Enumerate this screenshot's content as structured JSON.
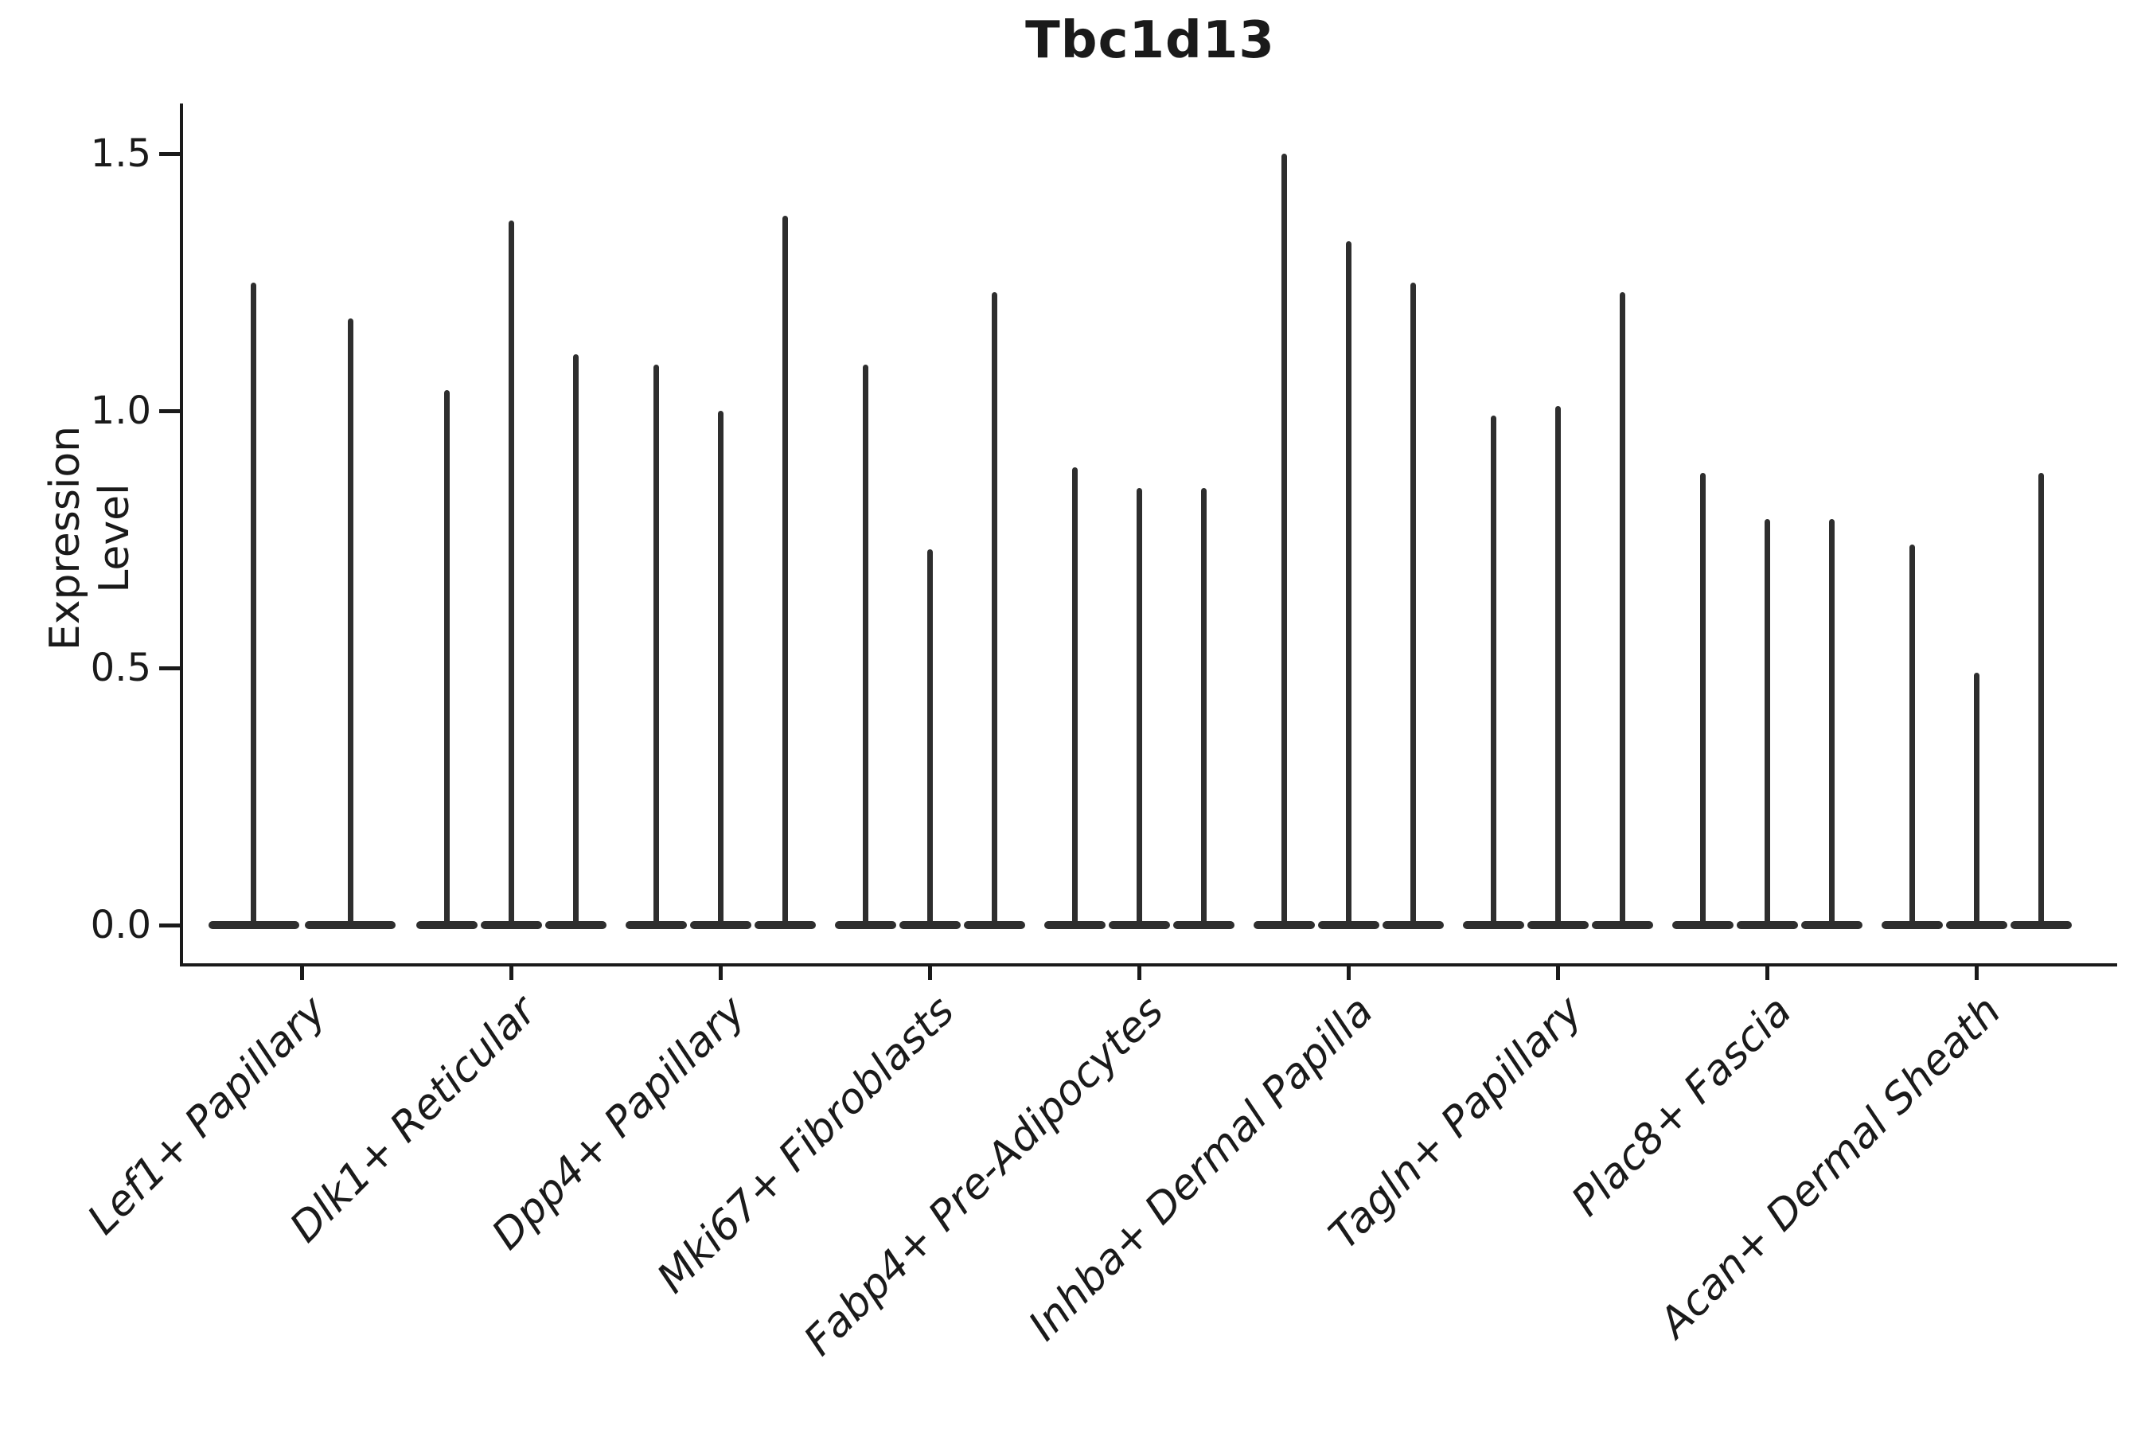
{
  "title": "Tbc1d13",
  "y_axis": {
    "label": "Expression Level",
    "tick_labels": [
      "0.0",
      "0.5",
      "1.0",
      "1.5"
    ]
  },
  "colors": {
    "violin": "#2e2e2e",
    "axis": "#1a1a1a",
    "text": "#1a1a1a",
    "background": "#ffffff"
  },
  "chart_data": {
    "type": "violin",
    "title": "Tbc1d13",
    "xlabel": "",
    "ylabel": "Expression Level",
    "ylim": [
      -0.07,
      1.57
    ],
    "yticks": [
      0.0,
      0.5,
      1.0,
      1.5
    ],
    "ytick_labels": [
      "0.0",
      "0.5",
      "1.0",
      "1.5"
    ],
    "grid": false,
    "legend": "none",
    "baseline_value": 0.0,
    "categories": [
      "Lef1+ Papillary",
      "Dlk1+ Reticular",
      "Dpp4+ Papillary",
      "Mki67+ Fibroblasts",
      "Fabp4+ Pre-Adipocytes",
      "Inhba+ Dermal Papilla",
      "Tagln+ Papillary",
      "Plac8+ Fascia",
      "Acan+ Dermal Sheath"
    ],
    "groups": [
      {
        "category": "Lef1+ Papillary",
        "violin_max": [
          1.25,
          1.18
        ]
      },
      {
        "category": "Dlk1+ Reticular",
        "violin_max": [
          1.04,
          1.37,
          1.11
        ]
      },
      {
        "category": "Dpp4+ Papillary",
        "violin_max": [
          1.09,
          1.0,
          1.38
        ]
      },
      {
        "category": "Mki67+ Fibroblasts",
        "violin_max": [
          1.09,
          0.73,
          1.23
        ]
      },
      {
        "category": "Fabp4+ Pre-Adipocytes",
        "violin_max": [
          0.89,
          0.85,
          0.85
        ]
      },
      {
        "category": "Inhba+ Dermal Papilla",
        "violin_max": [
          1.5,
          1.33,
          1.25
        ]
      },
      {
        "category": "Tagln+ Papillary",
        "violin_max": [
          0.99,
          1.01,
          1.23
        ]
      },
      {
        "category": "Plac8+ Fascia",
        "violin_max": [
          0.88,
          0.79,
          0.79
        ]
      },
      {
        "category": "Acan+ Dermal Sheath",
        "violin_max": [
          0.74,
          0.49,
          0.88
        ]
      }
    ],
    "description": "Single-cell expression violin plot; each violin is a flat mass at 0 with a thin spike up to its maximum expression value."
  }
}
